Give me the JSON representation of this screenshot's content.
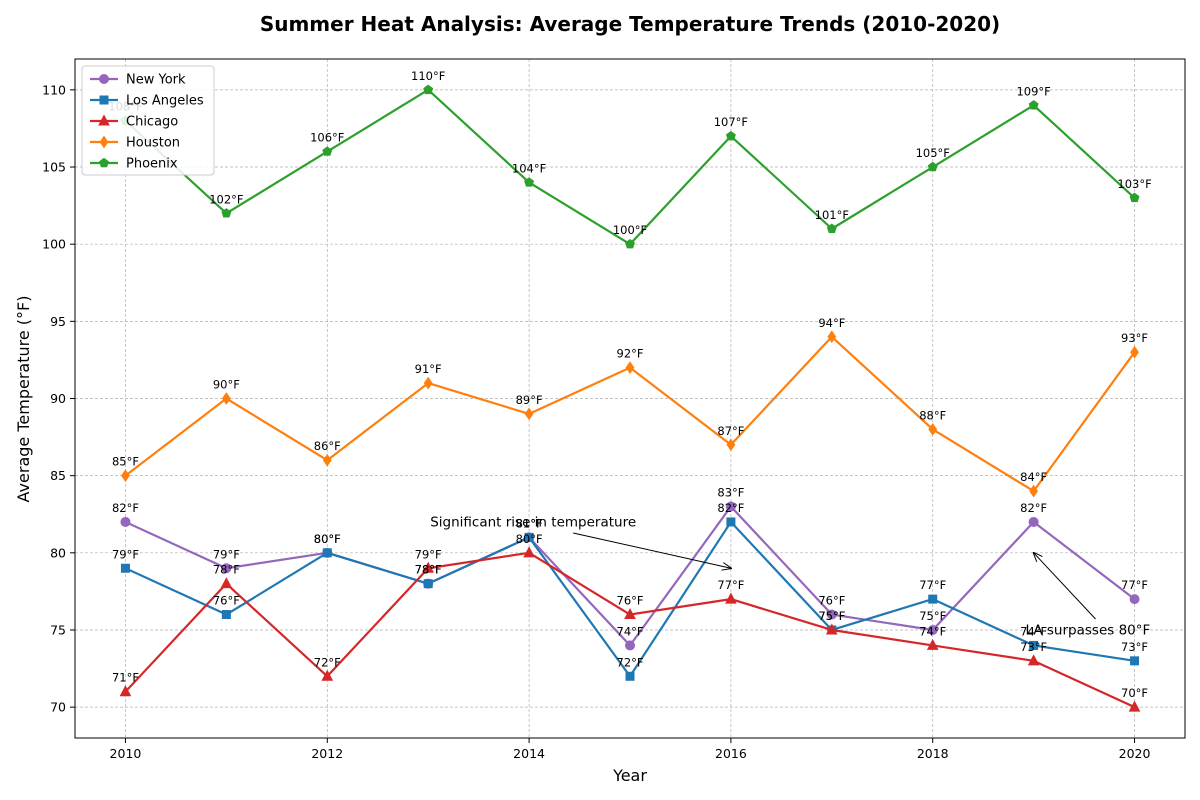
{
  "chart_data": {
    "type": "line",
    "title": "Summer Heat Analysis: Average Temperature Trends (2010-2020)",
    "xlabel": "Year",
    "ylabel": "Average Temperature (°F)",
    "xlim": [
      2009.5,
      2020.5
    ],
    "ylim": [
      68,
      112
    ],
    "x_ticks": [
      2010,
      2012,
      2014,
      2016,
      2018,
      2020
    ],
    "y_ticks": [
      70,
      75,
      80,
      85,
      90,
      95,
      100,
      105,
      110
    ],
    "grid": true,
    "legend_position": "top-left",
    "label_suffix": "°F",
    "x": [
      2010,
      2011,
      2012,
      2013,
      2014,
      2015,
      2016,
      2017,
      2018,
      2019,
      2020
    ],
    "series": [
      {
        "name": "New York",
        "color": "#9467bd",
        "marker": "circle",
        "values": [
          82,
          79,
          80,
          78,
          81,
          74,
          83,
          76,
          75,
          82,
          77
        ]
      },
      {
        "name": "Los Angeles",
        "color": "#1f77b4",
        "marker": "square",
        "values": [
          79,
          76,
          80,
          78,
          81,
          72,
          82,
          75,
          77,
          74,
          73
        ]
      },
      {
        "name": "Chicago",
        "color": "#d62728",
        "marker": "triangle",
        "values": [
          71,
          78,
          72,
          79,
          80,
          76,
          77,
          75,
          74,
          73,
          70
        ]
      },
      {
        "name": "Houston",
        "color": "#ff7f0e",
        "marker": "diamond",
        "values": [
          85,
          90,
          86,
          91,
          89,
          92,
          87,
          94,
          88,
          84,
          93
        ]
      },
      {
        "name": "Phoenix",
        "color": "#2ca02c",
        "marker": "pentagon",
        "values": [
          108,
          102,
          106,
          110,
          104,
          100,
          107,
          101,
          105,
          109,
          103
        ]
      }
    ],
    "annotations": [
      {
        "text": "Significant rise in temperature",
        "text_x": 2013,
        "text_y": 82,
        "arrow_x": 2016,
        "arrow_y": 79
      },
      {
        "text": "LA surpasses 80°F",
        "text_x": 2018.9,
        "text_y": 75,
        "arrow_x": 2019,
        "arrow_y": 80
      }
    ]
  }
}
